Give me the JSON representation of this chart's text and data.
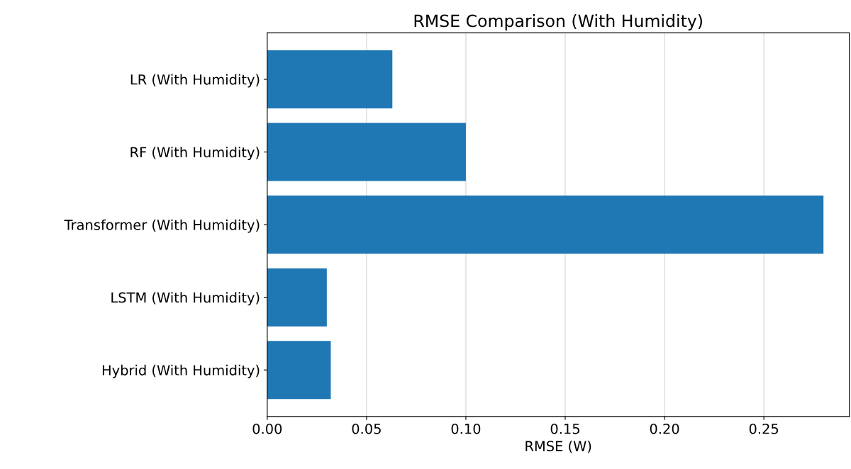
{
  "chart_data": {
    "type": "bar",
    "orientation": "horizontal",
    "title": "RMSE Comparison (With Humidity)",
    "xlabel": "RMSE (W)",
    "categories": [
      "LR (With Humidity)",
      "RF (With Humidity)",
      "Transformer (With Humidity)",
      "LSTM (With Humidity)",
      "Hybrid (With Humidity)"
    ],
    "values": [
      0.063,
      0.1,
      0.28,
      0.03,
      0.032
    ],
    "color": "#1f77b4",
    "xlim": [
      0,
      0.293
    ],
    "xticks": [
      {
        "value": 0,
        "label": "0.00"
      },
      {
        "value": 0.05,
        "label": "0.05"
      },
      {
        "value": 0.1,
        "label": "0.10"
      },
      {
        "value": 0.15,
        "label": "0.15"
      },
      {
        "value": 0.2,
        "label": "0.20"
      },
      {
        "value": 0.25,
        "label": "0.25"
      }
    ],
    "grid": "x"
  }
}
